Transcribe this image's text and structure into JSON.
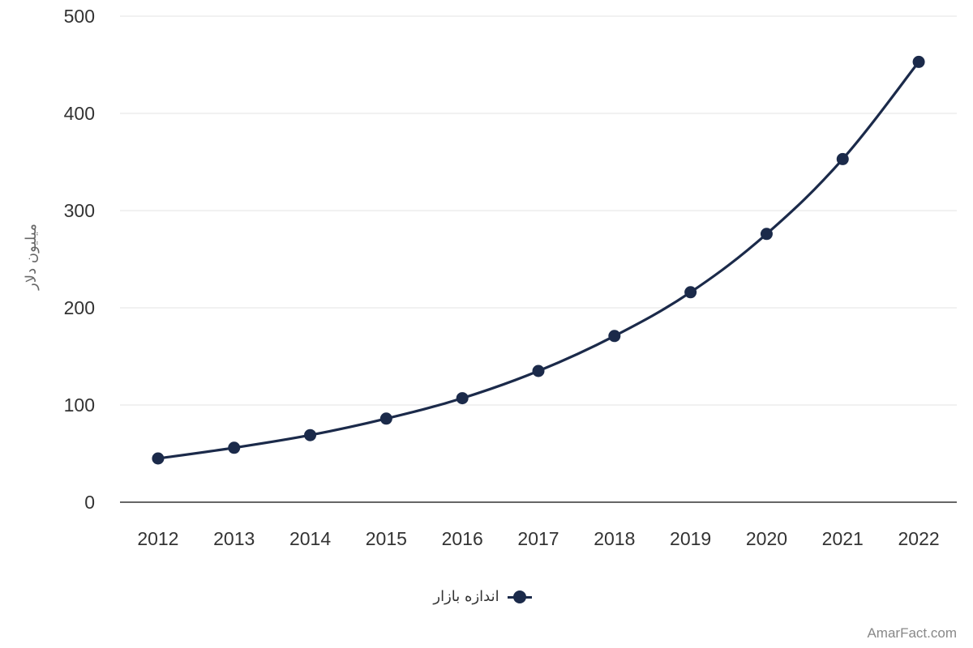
{
  "chart_data": {
    "type": "line",
    "smooth": true,
    "categories": [
      "2012",
      "2013",
      "2014",
      "2015",
      "2016",
      "2017",
      "2018",
      "2019",
      "2020",
      "2021",
      "2022"
    ],
    "series": [
      {
        "name": "اندازه بازار",
        "values": [
          45,
          56,
          69,
          86,
          107,
          135,
          171,
          216,
          276,
          353,
          453
        ],
        "color": "#1b2a4a"
      }
    ],
    "ylabel": "میلیون دلار",
    "ylim": [
      0,
      500
    ],
    "yticks": [
      "0",
      "100",
      "200",
      "300",
      "400",
      "500"
    ],
    "grid": true,
    "legend_position": "bottom-center"
  },
  "watermark": "AmarFact.com"
}
